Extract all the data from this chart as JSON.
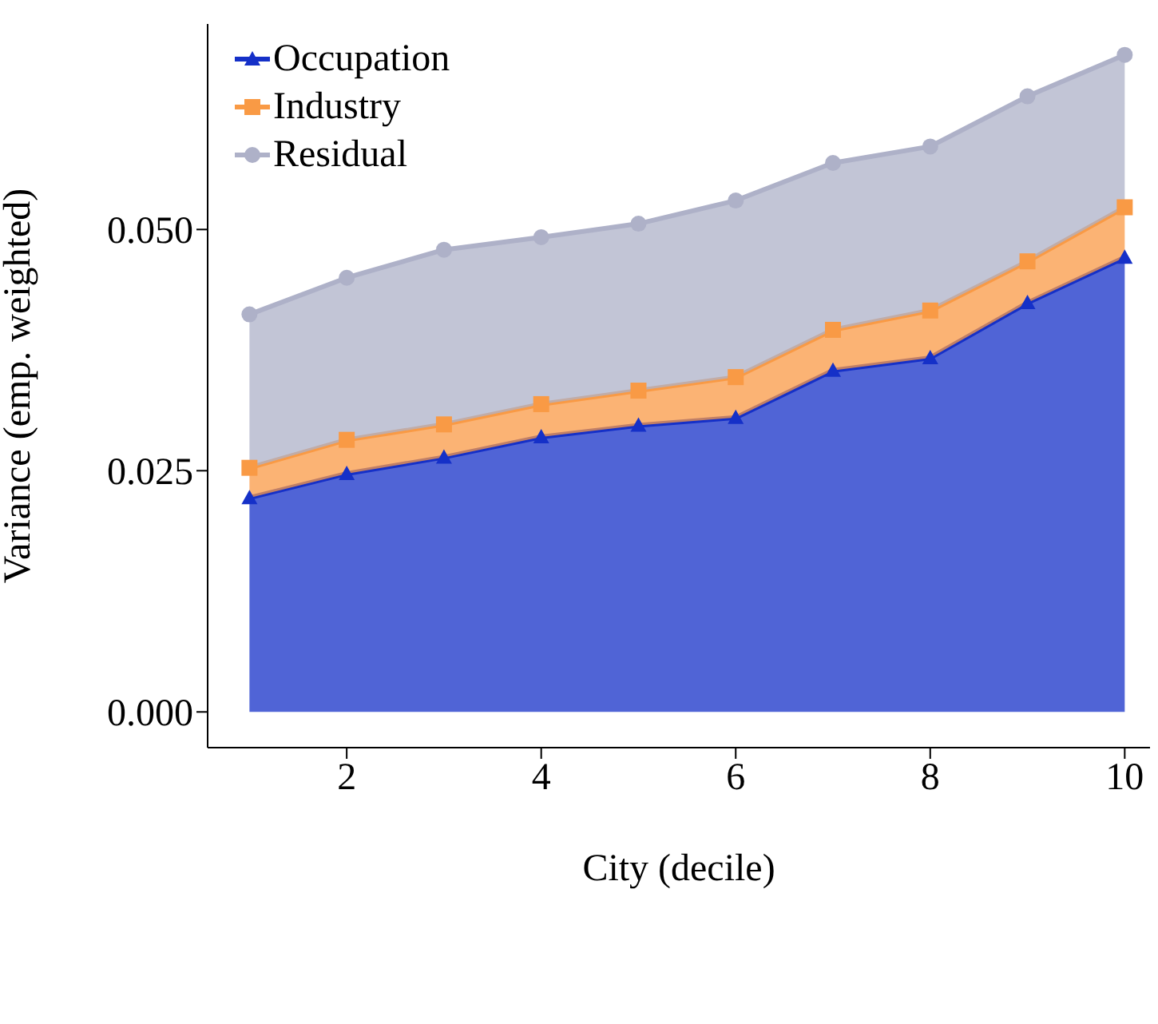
{
  "chart_data": {
    "type": "area",
    "stacked": true,
    "xlabel": "City (decile)",
    "ylabel": "Variance (emp. weighted)",
    "x": [
      1,
      2,
      3,
      4,
      5,
      6,
      7,
      8,
      9,
      10
    ],
    "series": [
      {
        "name": "Occupation",
        "color": "#1530c8",
        "marker": "triangle",
        "values": [
          0.0222,
          0.0247,
          0.0264,
          0.0285,
          0.0297,
          0.0305,
          0.0354,
          0.0367,
          0.0424,
          0.0471
        ]
      },
      {
        "name": "Industry",
        "color": "#f99a45",
        "marker": "square",
        "values": [
          0.0031,
          0.0035,
          0.0034,
          0.0034,
          0.0036,
          0.0042,
          0.0042,
          0.0049,
          0.0043,
          0.0052
        ]
      },
      {
        "name": "Residual",
        "color": "#aeb1c8",
        "marker": "circle",
        "values": [
          0.0159,
          0.0168,
          0.0181,
          0.0173,
          0.0173,
          0.0183,
          0.0173,
          0.017,
          0.0171,
          0.0158
        ]
      }
    ],
    "xlim": [
      0.57,
      10.26
    ],
    "xticks": [
      2,
      4,
      6,
      8,
      10
    ],
    "ylim": [
      -0.0037,
      0.0713
    ],
    "yticks": [
      {
        "value": 0,
        "label": "0.000"
      },
      {
        "value": 0.025,
        "label": "0.025"
      },
      {
        "value": 0.05,
        "label": "0.050"
      }
    ],
    "grid": false,
    "legend": "top left"
  }
}
